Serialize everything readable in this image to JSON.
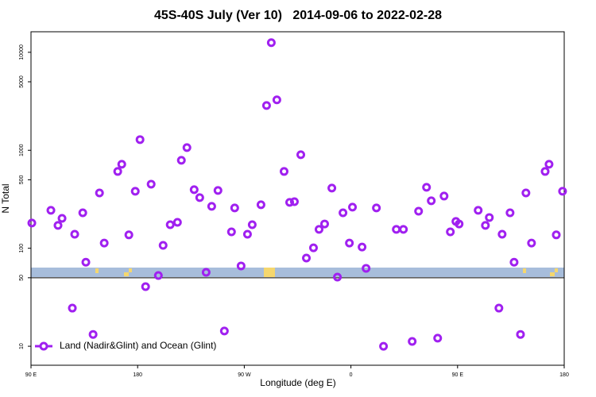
{
  "chart_data": {
    "type": "scatter",
    "title": "45S-40S July (Ver 10)   2014-09-06 to 2022-02-28",
    "x_label": "Longitude (deg E)",
    "y_label": "N Total",
    "log_y": true,
    "legend": "bottom-left",
    "hline": 50,
    "xlim": [
      90,
      540
    ],
    "xticks": [
      {
        "value": 90,
        "label": "90 E"
      },
      {
        "value": 180,
        "label": "180"
      },
      {
        "value": 270,
        "label": "90 W"
      },
      {
        "value": 360,
        "label": "0"
      },
      {
        "value": 450,
        "label": "90 E"
      },
      {
        "value": 540,
        "label": "180"
      }
    ],
    "ylim": [
      6.4,
      16200
    ],
    "yticks": [
      10,
      50,
      100,
      500,
      1000,
      5000,
      10000
    ],
    "series": [
      {
        "name": "Land (Nadir&Glint) and Ocean (Glint)",
        "color": "#a020f0",
        "x": [
          90.7,
          106.8,
          112.8,
          116.2,
          124.9,
          126.9,
          133.7,
          136.3,
          142.4,
          147.8,
          151.8,
          163.2,
          166.6,
          172.6,
          178,
          182,
          186.7,
          191.4,
          197.5,
          201.5,
          207.5,
          213.6,
          216.9,
          221.6,
          227.7,
          232.4,
          237.8,
          242.5,
          247.8,
          253.2,
          259.2,
          261.9,
          267.3,
          272.7,
          276.7,
          284.1,
          288.8,
          292.8,
          297.5,
          303.6,
          308.3,
          312.3,
          317.7,
          322.4,
          328.4,
          333.1,
          337.8,
          343.9,
          348.6,
          353.3,
          358.7,
          361.3,
          369.4,
          372.8,
          381.5,
          387.5,
          398.3,
          404.3,
          411.7,
          417.1,
          423.8,
          427.8,
          433.2,
          438.6,
          443.9,
          448.6,
          451.3,
          467.4,
          473.5,
          476.8,
          484.9,
          487.6,
          494.3,
          497.7,
          503.1,
          507.7,
          512.4,
          523.9,
          527.2,
          533.3,
          538.6
        ],
        "values": [
          181,
          244,
          171,
          202,
          24.5,
          139,
          230,
          72,
          13.2,
          367,
          113,
          608,
          720,
          137,
          382,
          1285,
          40.6,
          451,
          52.7,
          107,
          174,
          184,
          790,
          1066,
          396,
          329,
          56.8,
          268,
          389,
          14.3,
          147,
          258,
          66,
          139,
          174,
          278,
          2866,
          12540,
          3268,
          608,
          294,
          299,
          901,
          79.4,
          101,
          156,
          177,
          411,
          50.8,
          230,
          113,
          263,
          103,
          62.4,
          258,
          10,
          156,
          156,
          11.2,
          239,
          419,
          305,
          12.1,
          341,
          147,
          188,
          177,
          244,
          171,
          206,
          24.5,
          139,
          230,
          72,
          13.2,
          367,
          113,
          608,
          720,
          137,
          382
        ]
      }
    ]
  }
}
